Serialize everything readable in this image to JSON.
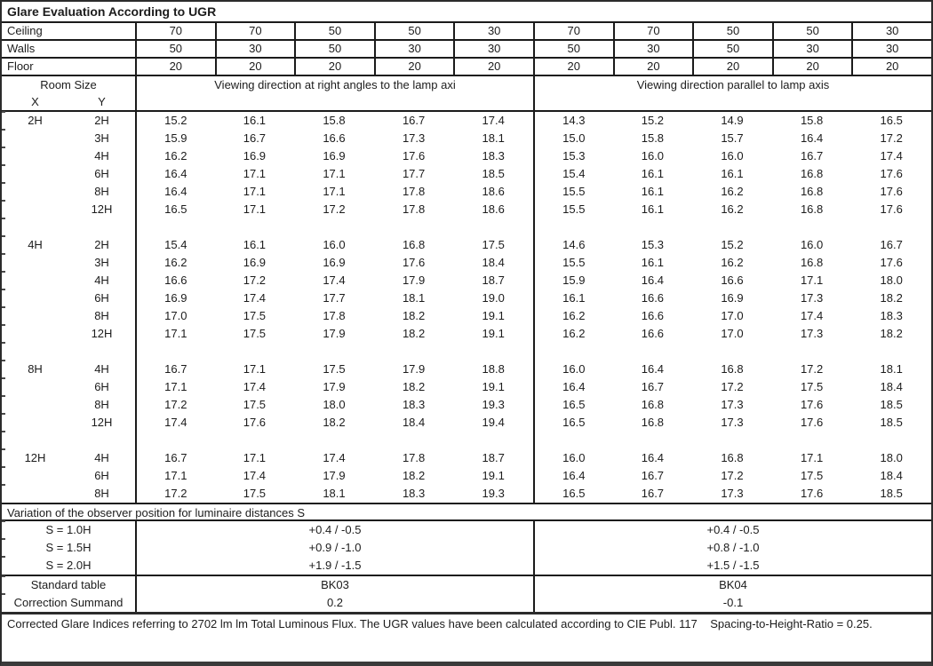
{
  "title": "Glare Evaluation According to UGR",
  "surface_rows": [
    {
      "label": "Ceiling",
      "values": [
        "70",
        "70",
        "50",
        "50",
        "30",
        "70",
        "70",
        "50",
        "50",
        "30"
      ]
    },
    {
      "label": "Walls",
      "values": [
        "50",
        "30",
        "50",
        "30",
        "30",
        "50",
        "30",
        "50",
        "30",
        "30"
      ]
    },
    {
      "label": "Floor",
      "values": [
        "20",
        "20",
        "20",
        "20",
        "20",
        "20",
        "20",
        "20",
        "20",
        "20"
      ]
    }
  ],
  "header": {
    "room_size": "Room Size",
    "x": "X",
    "y": "Y",
    "left_span": "Viewing direction at right angles to the lamp axi",
    "right_span": "Viewing direction parallel to lamp axis"
  },
  "groups": [
    {
      "x": "2H",
      "rows": [
        {
          "y": "2H",
          "values": [
            "15.2",
            "16.1",
            "15.8",
            "16.7",
            "17.4",
            "14.3",
            "15.2",
            "14.9",
            "15.8",
            "16.5"
          ]
        },
        {
          "y": "3H",
          "values": [
            "15.9",
            "16.7",
            "16.6",
            "17.3",
            "18.1",
            "15.0",
            "15.8",
            "15.7",
            "16.4",
            "17.2"
          ]
        },
        {
          "y": "4H",
          "values": [
            "16.2",
            "16.9",
            "16.9",
            "17.6",
            "18.3",
            "15.3",
            "16.0",
            "16.0",
            "16.7",
            "17.4"
          ]
        },
        {
          "y": "6H",
          "values": [
            "16.4",
            "17.1",
            "17.1",
            "17.7",
            "18.5",
            "15.4",
            "16.1",
            "16.1",
            "16.8",
            "17.6"
          ]
        },
        {
          "y": "8H",
          "values": [
            "16.4",
            "17.1",
            "17.1",
            "17.8",
            "18.6",
            "15.5",
            "16.1",
            "16.2",
            "16.8",
            "17.6"
          ]
        },
        {
          "y": "12H",
          "values": [
            "16.5",
            "17.1",
            "17.2",
            "17.8",
            "18.6",
            "15.5",
            "16.1",
            "16.2",
            "16.8",
            "17.6"
          ]
        }
      ]
    },
    {
      "x": "4H",
      "rows": [
        {
          "y": "2H",
          "values": [
            "15.4",
            "16.1",
            "16.0",
            "16.8",
            "17.5",
            "14.6",
            "15.3",
            "15.2",
            "16.0",
            "16.7"
          ]
        },
        {
          "y": "3H",
          "values": [
            "16.2",
            "16.9",
            "16.9",
            "17.6",
            "18.4",
            "15.5",
            "16.1",
            "16.2",
            "16.8",
            "17.6"
          ]
        },
        {
          "y": "4H",
          "values": [
            "16.6",
            "17.2",
            "17.4",
            "17.9",
            "18.7",
            "15.9",
            "16.4",
            "16.6",
            "17.1",
            "18.0"
          ]
        },
        {
          "y": "6H",
          "values": [
            "16.9",
            "17.4",
            "17.7",
            "18.1",
            "19.0",
            "16.1",
            "16.6",
            "16.9",
            "17.3",
            "18.2"
          ]
        },
        {
          "y": "8H",
          "values": [
            "17.0",
            "17.5",
            "17.8",
            "18.2",
            "19.1",
            "16.2",
            "16.6",
            "17.0",
            "17.4",
            "18.3"
          ]
        },
        {
          "y": "12H",
          "values": [
            "17.1",
            "17.5",
            "17.9",
            "18.2",
            "19.1",
            "16.2",
            "16.6",
            "17.0",
            "17.3",
            "18.2"
          ]
        }
      ]
    },
    {
      "x": "8H",
      "rows": [
        {
          "y": "4H",
          "values": [
            "16.7",
            "17.1",
            "17.5",
            "17.9",
            "18.8",
            "16.0",
            "16.4",
            "16.8",
            "17.2",
            "18.1"
          ]
        },
        {
          "y": "6H",
          "values": [
            "17.1",
            "17.4",
            "17.9",
            "18.2",
            "19.1",
            "16.4",
            "16.7",
            "17.2",
            "17.5",
            "18.4"
          ]
        },
        {
          "y": "8H",
          "values": [
            "17.2",
            "17.5",
            "18.0",
            "18.3",
            "19.3",
            "16.5",
            "16.8",
            "17.3",
            "17.6",
            "18.5"
          ]
        },
        {
          "y": "12H",
          "values": [
            "17.4",
            "17.6",
            "18.2",
            "18.4",
            "19.4",
            "16.5",
            "16.8",
            "17.3",
            "17.6",
            "18.5"
          ]
        }
      ]
    },
    {
      "x": "12H",
      "rows": [
        {
          "y": "4H",
          "values": [
            "16.7",
            "17.1",
            "17.4",
            "17.8",
            "18.7",
            "16.0",
            "16.4",
            "16.8",
            "17.1",
            "18.0"
          ]
        },
        {
          "y": "6H",
          "values": [
            "17.1",
            "17.4",
            "17.9",
            "18.2",
            "19.1",
            "16.4",
            "16.7",
            "17.2",
            "17.5",
            "18.4"
          ]
        },
        {
          "y": "8H",
          "values": [
            "17.2",
            "17.5",
            "18.1",
            "18.3",
            "19.3",
            "16.5",
            "16.7",
            "17.3",
            "17.6",
            "18.5"
          ]
        }
      ]
    }
  ],
  "variation": {
    "title": "Variation of the observer position for luminaire distances S",
    "rows": [
      {
        "label": "S = 1.0H",
        "left": "+0.4 / -0.5",
        "right": "+0.4 / -0.5"
      },
      {
        "label": "S = 1.5H",
        "left": "+0.9 / -1.0",
        "right": "+0.8 / -1.0"
      },
      {
        "label": "S = 2.0H",
        "left": "+1.9 / -1.5",
        "right": "+1.5 / -1.5"
      }
    ]
  },
  "summary": {
    "rows": [
      {
        "label": "Standard table",
        "left": "BK03",
        "right": "BK04"
      },
      {
        "label": "Correction Summand",
        "left": "0.2",
        "right": "-0.1"
      }
    ]
  },
  "footer": "Corrected Glare Indices referring to 2702 lm lm Total Luminous Flux. The UGR values have been calculated according to CIE Publ. 117    Spacing-to-Height-Ratio = 0.25."
}
